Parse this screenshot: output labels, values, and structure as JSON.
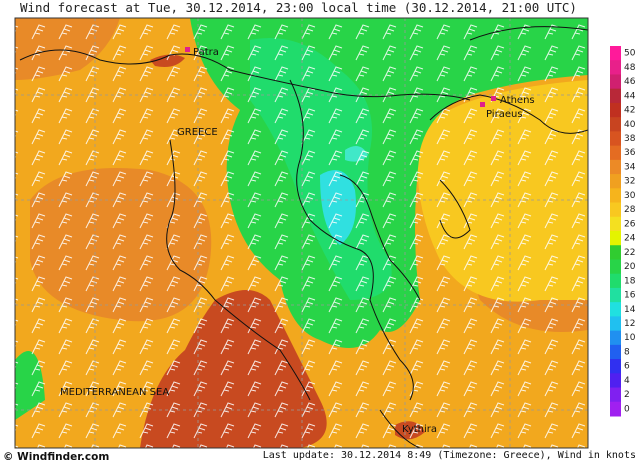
{
  "header": {
    "title": "Wind forecast at Tue, 30.12.2014, 23:00 local time (30.12.2014, 21:00 UTC)"
  },
  "map": {
    "labels": [
      "Patra",
      "Athens",
      "Piraeus",
      "GREECE",
      "MEDITERRANEAN SEA",
      "Kythira"
    ]
  },
  "legend": {
    "items": [
      {
        "value": 50,
        "color": "#ff1a9a"
      },
      {
        "value": 48,
        "color": "#e8208a"
      },
      {
        "value": 46,
        "color": "#d02070"
      },
      {
        "value": 44,
        "color": "#b82838"
      },
      {
        "value": 42,
        "color": "#c03020"
      },
      {
        "value": 40,
        "color": "#c84420"
      },
      {
        "value": 38,
        "color": "#d85420"
      },
      {
        "value": 36,
        "color": "#e46c22"
      },
      {
        "value": 34,
        "color": "#ec8a26"
      },
      {
        "value": 32,
        "color": "#f0a020"
      },
      {
        "value": 30,
        "color": "#f6b41c"
      },
      {
        "value": 28,
        "color": "#f8c820"
      },
      {
        "value": 26,
        "color": "#f4e020"
      },
      {
        "value": 24,
        "color": "#e4f400"
      },
      {
        "value": 22,
        "color": "#30cc30"
      },
      {
        "value": 20,
        "color": "#28d448"
      },
      {
        "value": 18,
        "color": "#20dc6c"
      },
      {
        "value": 16,
        "color": "#20e0a0"
      },
      {
        "value": 14,
        "color": "#20e0e0"
      },
      {
        "value": 12,
        "color": "#20c0f0"
      },
      {
        "value": 10,
        "color": "#2090f0"
      },
      {
        "value": 8,
        "color": "#2060f0"
      },
      {
        "value": 6,
        "color": "#3030f0"
      },
      {
        "value": 4,
        "color": "#5020f0"
      },
      {
        "value": 2,
        "color": "#8020f0"
      },
      {
        "value": 0,
        "color": "#a020f0"
      }
    ]
  },
  "footer": {
    "credit": "© Windfinder.com",
    "update": "Last update: 30.12.2014 8:49 (Timezone: Greece), Wind in knots"
  }
}
